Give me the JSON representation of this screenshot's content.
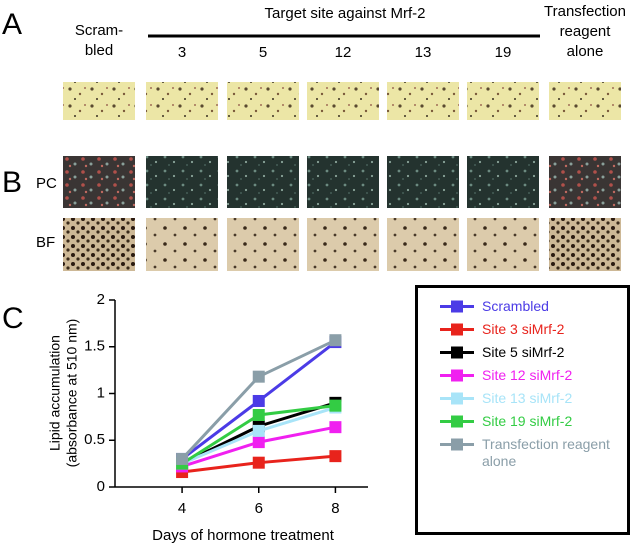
{
  "panel_a": {
    "label": "A",
    "header": "Target site against Mrf-2",
    "columns": [
      [
        "Scram-",
        "bled"
      ],
      [
        "3"
      ],
      [
        "5"
      ],
      [
        "12"
      ],
      [
        "13"
      ],
      [
        "19"
      ],
      [
        "Transfection",
        "reagent",
        "alone"
      ]
    ]
  },
  "panel_b": {
    "label": "B",
    "rows": [
      "PC",
      "BF"
    ]
  },
  "chart_data": {
    "type": "line",
    "panel_label": "C",
    "x_label": "Days of hormone treatment",
    "y_label": [
      "Lipid accumulation",
      "(absorbance at 510 nm)"
    ],
    "x": [
      4,
      6,
      8
    ],
    "xlim": [
      2.25,
      8.85
    ],
    "xticks": [
      4,
      6,
      8
    ],
    "ylim": [
      0,
      2
    ],
    "yticks": [
      0,
      0.5,
      1,
      1.5,
      2
    ],
    "series": [
      {
        "name": "Scrambled",
        "color": "#4b3be6",
        "values": [
          0.3,
          0.92,
          1.55
        ]
      },
      {
        "name": "Site 3 siMrf-2",
        "color": "#e8231c",
        "values": [
          0.16,
          0.26,
          0.33
        ]
      },
      {
        "name": "Site 5 siMrf-2",
        "color": "#000000",
        "values": [
          0.25,
          0.65,
          0.9
        ]
      },
      {
        "name": "Site 12 siMrf-2",
        "color": "#f020f0",
        "values": [
          0.22,
          0.48,
          0.64
        ]
      },
      {
        "name": "Site 13 siMrf-2",
        "color": "#a8e4f8",
        "values": [
          0.25,
          0.6,
          0.85
        ]
      },
      {
        "name": "Site 19 siMrf-2",
        "color": "#33cc44",
        "values": [
          0.25,
          0.77,
          0.87
        ]
      },
      {
        "name": "Transfection reagent alone",
        "color": "#8a9ea8",
        "values": [
          0.3,
          1.18,
          1.57
        ]
      }
    ],
    "legend": "right"
  }
}
